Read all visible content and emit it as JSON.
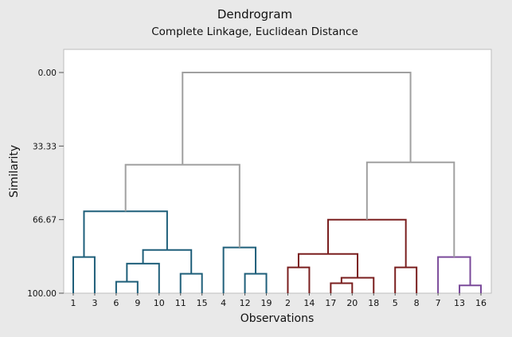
{
  "chart_data": {
    "type": "dendrogram",
    "title": "Dendrogram",
    "subtitle": "Complete Linkage, Euclidean Distance",
    "xlabel": "Observations",
    "ylabel": "Similarity",
    "ylim": [
      0,
      100
    ],
    "y_reversed": true,
    "y_ticks": [
      "0.00",
      "33.33",
      "66.67",
      "100.00"
    ],
    "y_tick_values": [
      0,
      33.33,
      66.67,
      100
    ],
    "leaf_order": [
      "1",
      "3",
      "6",
      "9",
      "10",
      "11",
      "15",
      "4",
      "12",
      "19",
      "2",
      "14",
      "17",
      "20",
      "18",
      "5",
      "8",
      "7",
      "13",
      "16"
    ],
    "colors": {
      "cluster1": "#1f5f7a",
      "cluster2": "#7a1f1f",
      "cluster3": "#7a4a9a",
      "upper": "#a0a0a0"
    },
    "merges": [
      {
        "id": "m1",
        "left": "1",
        "right": "3",
        "similarity": 83.6,
        "color": "cluster1"
      },
      {
        "id": "m2",
        "left": "6",
        "right": "9",
        "similarity": 94.8,
        "color": "cluster1"
      },
      {
        "id": "m3",
        "left": "m2",
        "right": "10",
        "similarity": 86.6,
        "color": "cluster1"
      },
      {
        "id": "m4",
        "left": "11",
        "right": "15",
        "similarity": 91.2,
        "color": "cluster1"
      },
      {
        "id": "m5",
        "left": "m3",
        "right": "m4",
        "similarity": 80.4,
        "color": "cluster1"
      },
      {
        "id": "m6",
        "left": "m1",
        "right": "m5",
        "similarity": 62.9,
        "color": "cluster1"
      },
      {
        "id": "m7",
        "left": "12",
        "right": "19",
        "similarity": 91.2,
        "color": "cluster1"
      },
      {
        "id": "m8",
        "left": "4",
        "right": "m7",
        "similarity": 79.3,
        "color": "cluster1"
      },
      {
        "id": "m9",
        "left": "m6",
        "right": "m8",
        "similarity": 41.8,
        "color": "upper"
      },
      {
        "id": "m10",
        "left": "2",
        "right": "14",
        "similarity": 88.3,
        "color": "cluster2"
      },
      {
        "id": "m11",
        "left": "17",
        "right": "20",
        "similarity": 95.5,
        "color": "cluster2"
      },
      {
        "id": "m12",
        "left": "m11",
        "right": "18",
        "similarity": 93.0,
        "color": "cluster2"
      },
      {
        "id": "m13",
        "left": "m10",
        "right": "m12",
        "similarity": 82.2,
        "color": "cluster2"
      },
      {
        "id": "m14",
        "left": "5",
        "right": "8",
        "similarity": 88.3,
        "color": "cluster2"
      },
      {
        "id": "m15",
        "left": "m13",
        "right": "m14",
        "similarity": 66.7,
        "color": "cluster2"
      },
      {
        "id": "m16",
        "left": "13",
        "right": "16",
        "similarity": 96.5,
        "color": "cluster3"
      },
      {
        "id": "m17",
        "left": "7",
        "right": "m16",
        "similarity": 83.6,
        "color": "cluster3"
      },
      {
        "id": "m18",
        "left": "m15",
        "right": "m17",
        "similarity": 40.7,
        "color": "upper"
      },
      {
        "id": "m19",
        "left": "m9",
        "right": "m18",
        "similarity": 0.0,
        "color": "upper"
      }
    ]
  }
}
